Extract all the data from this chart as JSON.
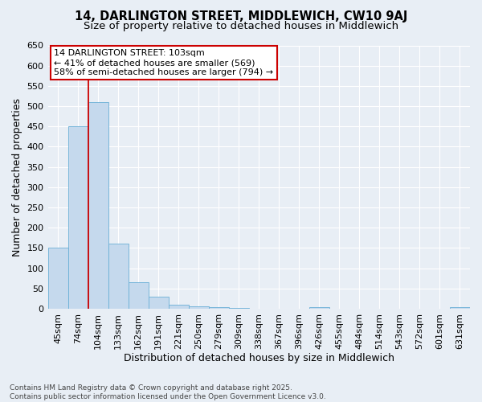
{
  "title1": "14, DARLINGTON STREET, MIDDLEWICH, CW10 9AJ",
  "title2": "Size of property relative to detached houses in Middlewich",
  "xlabel": "Distribution of detached houses by size in Middlewich",
  "ylabel": "Number of detached properties",
  "categories": [
    "45sqm",
    "74sqm",
    "104sqm",
    "133sqm",
    "162sqm",
    "191sqm",
    "221sqm",
    "250sqm",
    "279sqm",
    "309sqm",
    "338sqm",
    "367sqm",
    "396sqm",
    "426sqm",
    "455sqm",
    "484sqm",
    "514sqm",
    "543sqm",
    "572sqm",
    "601sqm",
    "631sqm"
  ],
  "values": [
    150,
    450,
    510,
    160,
    65,
    30,
    10,
    5,
    3,
    2,
    0,
    0,
    0,
    4,
    0,
    0,
    0,
    0,
    0,
    0,
    4
  ],
  "bar_color": "#c5d9ed",
  "bar_edge_color": "#6aafd6",
  "vline_color": "#cc0000",
  "vline_x_index": 2,
  "annotation_text": "14 DARLINGTON STREET: 103sqm\n← 41% of detached houses are smaller (569)\n58% of semi-detached houses are larger (794) →",
  "annotation_box_color": "#ffffff",
  "annotation_box_edge": "#cc0000",
  "ylim": [
    0,
    650
  ],
  "yticks": [
    0,
    50,
    100,
    150,
    200,
    250,
    300,
    350,
    400,
    450,
    500,
    550,
    600,
    650
  ],
  "figure_bg": "#e8eef5",
  "plot_bg": "#e8eef5",
  "grid_color": "#ffffff",
  "footer_line1": "Contains HM Land Registry data © Crown copyright and database right 2025.",
  "footer_line2": "Contains public sector information licensed under the Open Government Licence v3.0.",
  "title_fontsize": 10.5,
  "subtitle_fontsize": 9.5,
  "tick_fontsize": 8,
  "label_fontsize": 9,
  "annotation_fontsize": 8,
  "footer_fontsize": 6.5
}
